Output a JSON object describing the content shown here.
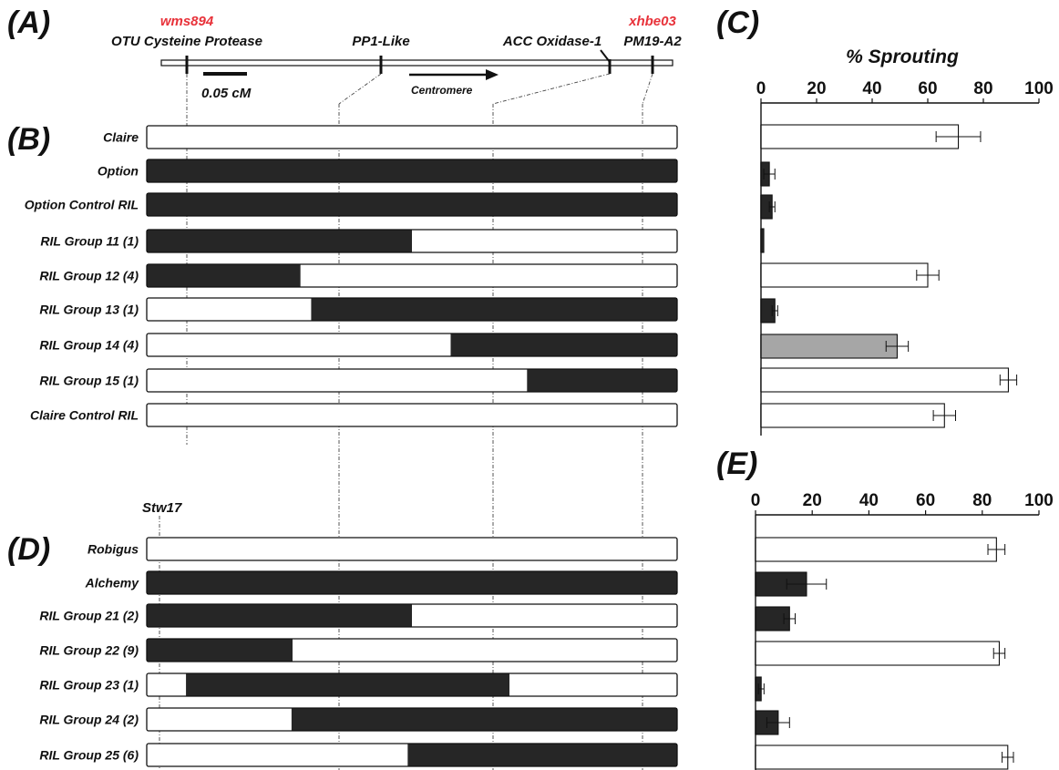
{
  "panels": {
    "a": "(A)",
    "b": "(B)",
    "c": "(C)",
    "d": "(D)",
    "e": "(E)"
  },
  "colors": {
    "dark": "#262626",
    "light": "#ffffff",
    "grey": "#a6a6a6",
    "highlight": "#e8323a"
  },
  "map": {
    "markers": [
      {
        "name": "OTU Cysteine Protease",
        "alias": "wms894",
        "pos": 0.05
      },
      {
        "name": "PP1-Like",
        "alias": "",
        "pos": 0.43
      },
      {
        "name": "ACC Oxidase-1",
        "alias": "",
        "pos": 0.875
      },
      {
        "name": "PM19-A2",
        "alias": "xhbe03",
        "pos": 0.96
      }
    ],
    "scale_label": "0.05 cM",
    "centromere_label": "Centromere",
    "stw_label": "Stw17"
  },
  "panel_b": {
    "rows": [
      {
        "label": "Claire",
        "segments": [
          [
            0,
            1,
            "light"
          ]
        ]
      },
      {
        "label": "Option",
        "segments": [
          [
            0,
            1,
            "dark"
          ]
        ]
      },
      {
        "label": "Option Control RIL",
        "segments": [
          [
            0,
            1,
            "dark"
          ]
        ]
      },
      {
        "label": "RIL Group 11   (1)",
        "segments": [
          [
            0,
            0.5,
            "dark"
          ],
          [
            0.5,
            1,
            "light"
          ]
        ]
      },
      {
        "label": "RIL Group 12   (4)",
        "segments": [
          [
            0,
            0.29,
            "dark"
          ],
          [
            0.29,
            1,
            "light"
          ]
        ]
      },
      {
        "label": "RIL Group 13   (1)",
        "segments": [
          [
            0,
            0.31,
            "light"
          ],
          [
            0.31,
            1,
            "dark"
          ]
        ]
      },
      {
        "label": "RIL Group 14   (4)",
        "segments": [
          [
            0,
            0.573,
            "light"
          ],
          [
            0.573,
            1,
            "dark"
          ]
        ]
      },
      {
        "label": "RIL Group 15   (1)",
        "segments": [
          [
            0,
            0.717,
            "light"
          ],
          [
            0.717,
            1,
            "dark"
          ]
        ]
      },
      {
        "label": "Claire Control RIL",
        "segments": [
          [
            0,
            1,
            "light"
          ]
        ]
      }
    ]
  },
  "panel_d": {
    "rows": [
      {
        "label": "Robigus",
        "segments": [
          [
            0,
            1,
            "light"
          ]
        ]
      },
      {
        "label": "Alchemy",
        "segments": [
          [
            0,
            1,
            "dark"
          ]
        ]
      },
      {
        "label": "RIL Group 21 (2)",
        "segments": [
          [
            0,
            0.5,
            "dark"
          ],
          [
            0.5,
            1,
            "light"
          ]
        ]
      },
      {
        "label": "RIL Group 22 (9)",
        "segments": [
          [
            0,
            0.275,
            "dark"
          ],
          [
            0.275,
            1,
            "light"
          ]
        ]
      },
      {
        "label": "RIL Group 23 (1)",
        "segments": [
          [
            0,
            0.074,
            "light"
          ],
          [
            0.074,
            0.684,
            "dark"
          ],
          [
            0.684,
            1,
            "light"
          ]
        ]
      },
      {
        "label": "RIL Group 24 (2)",
        "segments": [
          [
            0,
            0.273,
            "light"
          ],
          [
            0.273,
            1,
            "dark"
          ]
        ]
      },
      {
        "label": "RIL Group 25 (6)",
        "segments": [
          [
            0,
            0.492,
            "light"
          ],
          [
            0.492,
            1,
            "dark"
          ]
        ]
      }
    ]
  },
  "chart_data": [
    {
      "type": "bar",
      "panel": "C",
      "orientation": "horizontal",
      "title": "% Sprouting",
      "xlim": [
        0,
        100
      ],
      "ticks": [
        "0",
        "20",
        "40",
        "60",
        "80",
        "100"
      ],
      "values": [
        71,
        3,
        4,
        1,
        60,
        5,
        49,
        89,
        66
      ],
      "errors": [
        8,
        2,
        1,
        0,
        4,
        1,
        4,
        3,
        4
      ],
      "colors": [
        "light",
        "dark",
        "dark",
        "dark",
        "light",
        "dark",
        "grey",
        "light",
        "light"
      ]
    },
    {
      "type": "bar",
      "panel": "E",
      "orientation": "horizontal",
      "xlim": [
        0,
        100
      ],
      "ticks": [
        "0",
        "20",
        "40",
        "60",
        "80",
        "100"
      ],
      "values": [
        85,
        18,
        12,
        86,
        2,
        8,
        89
      ],
      "errors": [
        3,
        7,
        2,
        2,
        1,
        4,
        2
      ],
      "colors": [
        "light",
        "dark",
        "dark",
        "light",
        "dark",
        "dark",
        "light"
      ]
    }
  ]
}
